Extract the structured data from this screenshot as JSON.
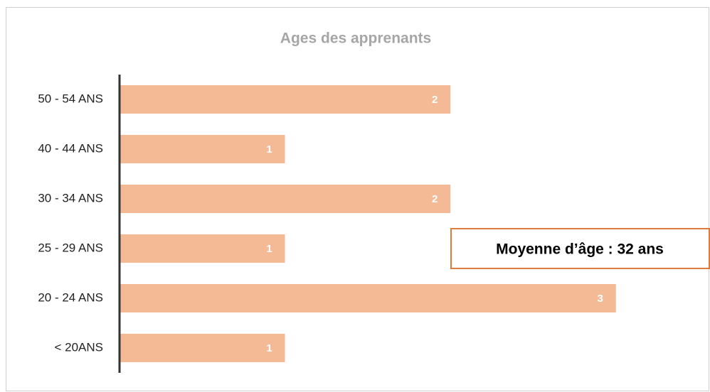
{
  "chart_data": {
    "type": "bar",
    "orientation": "horizontal",
    "title": "Ages des apprenants",
    "categories": [
      "50 - 54 ANS",
      "40 - 44 ANS",
      "30 - 34 ANS",
      "25 - 29 ANS",
      "20 - 24 ANS",
      "< 20ANS"
    ],
    "values": [
      2,
      1,
      2,
      1,
      3,
      1
    ],
    "color": "#f4b995",
    "xlim": [
      0,
      3.5
    ],
    "annotation": "Moyenne d’âge : 32 ans"
  }
}
